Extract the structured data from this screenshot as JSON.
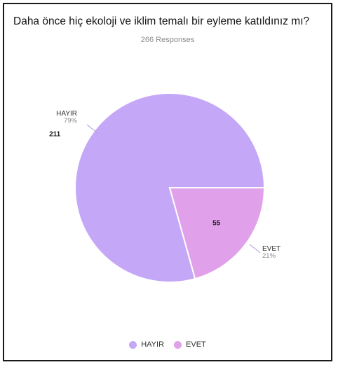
{
  "title": "Daha önce hiç ekoloji ve iklim temalı bir eyleme katıldınız mı?",
  "subtitle": "266 Responses",
  "colors": {
    "HAYIR": "#c4a8f7",
    "EVET": "#e0a0ea",
    "separator": "#ffffff",
    "leader": "#b39ad9"
  },
  "chart_data": {
    "type": "pie",
    "title": "Daha önce hiç ekoloji ve iklim temalı bir eyleme katıldınız mı?",
    "subtitle": "266 Responses",
    "total": 266,
    "slices": [
      {
        "label": "HAYIR",
        "value": 211,
        "percent": "79%"
      },
      {
        "label": "EVET",
        "value": 55,
        "percent": "21%"
      }
    ],
    "legend": {
      "position": "bottom",
      "entries": [
        "HAYIR",
        "EVET"
      ]
    }
  }
}
